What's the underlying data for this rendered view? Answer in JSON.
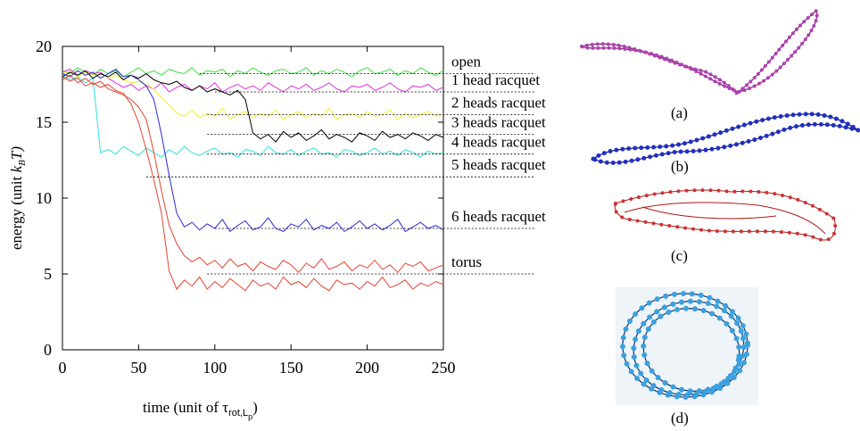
{
  "chart_data": {
    "type": "line",
    "ylabel": [
      "energy (unit ",
      "k",
      "B",
      "T)"
    ],
    "xlabel": [
      "time (unit of ",
      "τ",
      "rot,L",
      "p",
      ")"
    ],
    "xlim": [
      0,
      250
    ],
    "ylim": [
      0,
      20
    ],
    "xticks": [
      0,
      50,
      100,
      150,
      200,
      250
    ],
    "yticks": [
      0,
      5,
      10,
      15,
      20
    ],
    "x": [
      0,
      5,
      10,
      15,
      20,
      25,
      30,
      35,
      40,
      45,
      50,
      55,
      60,
      65,
      70,
      75,
      80,
      85,
      90,
      95,
      100,
      105,
      110,
      115,
      120,
      125,
      130,
      135,
      140,
      145,
      150,
      155,
      160,
      165,
      170,
      175,
      180,
      185,
      190,
      195,
      200,
      205,
      210,
      215,
      220,
      225,
      230,
      235,
      240,
      245,
      250
    ],
    "series": [
      {
        "color": "#3ee03e",
        "values": [
          18.4,
          18.2,
          18.6,
          18.3,
          18.1,
          18.5,
          18.2,
          18.4,
          18.0,
          18.3,
          18.6,
          18.2,
          18.4,
          18.1,
          18.5,
          18.3,
          18.2,
          18.6,
          18.1,
          18.4,
          18.3,
          18.5,
          18.0,
          18.4,
          18.2,
          18.6,
          18.3,
          18.1,
          18.4,
          18.5,
          18.2,
          18.3,
          18.6,
          18.1,
          18.4,
          18.2,
          18.5,
          18.3,
          18.0,
          18.4,
          18.6,
          18.2,
          18.3,
          18.5,
          18.1,
          18.4,
          18.2,
          18.6,
          18.3,
          18.1,
          18.4
        ]
      },
      {
        "color": "#e030e0",
        "values": [
          18.3,
          18.5,
          18.1,
          18.4,
          18.2,
          18.3,
          17.9,
          17.6,
          17.3,
          17.5,
          17.1,
          17.4,
          17.2,
          17.6,
          17.0,
          17.3,
          17.5,
          17.1,
          17.4,
          17.2,
          17.6,
          17.0,
          17.3,
          17.5,
          17.2,
          17.4,
          17.1,
          17.6,
          17.3,
          17.0,
          17.4,
          17.2,
          17.5,
          17.1,
          17.3,
          17.6,
          17.2,
          17.0,
          17.4,
          17.3,
          17.5,
          17.1,
          17.3,
          17.6,
          17.2,
          17.0,
          17.4,
          17.3,
          17.5,
          17.1,
          17.3
        ]
      },
      {
        "color": "#30e0e0",
        "values": [
          18.1,
          17.8,
          18.0,
          17.6,
          17.9,
          13.0,
          13.2,
          12.9,
          13.4,
          13.1,
          12.8,
          13.3,
          13.0,
          12.7,
          13.2,
          12.9,
          13.4,
          13.0,
          12.8,
          13.1,
          13.3,
          12.9,
          13.0,
          12.7,
          13.2,
          13.1,
          12.8,
          13.4,
          13.0,
          12.9,
          13.2,
          12.8,
          13.1,
          13.3,
          12.9,
          13.0,
          12.7,
          13.2,
          13.1,
          12.8,
          13.0,
          13.3,
          12.9,
          13.1,
          12.8,
          13.2,
          13.0,
          12.7,
          13.1,
          12.9,
          13.0
        ]
      },
      {
        "color": "#f0f020",
        "values": [
          18.2,
          18.4,
          18.0,
          18.3,
          18.1,
          18.2,
          17.9,
          18.1,
          17.8,
          17.6,
          17.7,
          17.5,
          17.2,
          16.6,
          16.1,
          15.6,
          15.4,
          15.8,
          15.3,
          15.6,
          15.4,
          15.9,
          15.2,
          15.5,
          15.7,
          15.3,
          15.6,
          15.4,
          15.8,
          15.2,
          15.5,
          15.7,
          15.3,
          15.6,
          15.4,
          15.9,
          15.2,
          15.5,
          15.6,
          15.3,
          15.7,
          15.4,
          15.5,
          15.8,
          15.2,
          15.6,
          15.3,
          15.5,
          15.7,
          15.4,
          15.5
        ]
      },
      {
        "color": "#000000",
        "values": [
          18.0,
          18.3,
          18.1,
          18.4,
          17.9,
          18.2,
          18.0,
          18.3,
          17.8,
          18.1,
          17.9,
          18.2,
          17.8,
          17.6,
          17.5,
          17.7,
          17.3,
          17.1,
          17.4,
          17.0,
          17.2,
          17.0,
          16.8,
          17.1,
          16.5,
          14.3,
          13.9,
          14.2,
          13.7,
          14.4,
          14.0,
          14.3,
          13.8,
          14.1,
          14.5,
          13.9,
          14.2,
          14.0,
          13.7,
          14.3,
          14.1,
          13.8,
          14.4,
          14.0,
          14.2,
          13.9,
          14.3,
          14.1,
          13.8,
          14.2,
          14.0
        ]
      },
      {
        "color": "#2a2ad8",
        "values": [
          18.2,
          18.0,
          18.4,
          18.1,
          18.3,
          17.9,
          18.2,
          18.5,
          18.0,
          18.1,
          17.8,
          17.4,
          16.5,
          14.2,
          11.5,
          9.0,
          8.1,
          8.4,
          7.9,
          8.3,
          8.0,
          8.6,
          7.8,
          8.2,
          8.5,
          7.9,
          8.1,
          8.7,
          8.0,
          7.8,
          8.3,
          8.1,
          8.6,
          7.9,
          8.2,
          8.0,
          8.4,
          7.8,
          8.1,
          8.5,
          8.0,
          8.3,
          7.9,
          8.2,
          8.6,
          7.8,
          8.1,
          8.4,
          8.0,
          8.2,
          7.9
        ]
      },
      {
        "color": "#e8432f",
        "values": [
          17.8,
          18.1,
          17.6,
          17.9,
          17.5,
          17.7,
          17.2,
          17.0,
          16.8,
          16.5,
          16.0,
          15.2,
          13.0,
          10.5,
          8.2,
          7.0,
          6.2,
          5.8,
          6.1,
          5.6,
          5.9,
          5.4,
          6.0,
          5.5,
          5.7,
          5.2,
          5.8,
          5.5,
          5.3,
          5.9,
          5.6,
          5.1,
          5.7,
          5.4,
          6.0,
          5.3,
          5.5,
          5.8,
          5.2,
          5.6,
          5.4,
          5.9,
          5.3,
          5.6,
          5.1,
          5.7,
          5.5,
          5.8,
          5.2,
          5.4,
          5.6
        ]
      },
      {
        "color": "#e8432f",
        "values": [
          18.0,
          17.7,
          17.9,
          17.4,
          17.6,
          17.3,
          17.5,
          17.1,
          16.9,
          16.2,
          15.0,
          13.2,
          11.2,
          9.0,
          5.2,
          4.0,
          4.6,
          4.2,
          4.8,
          4.0,
          4.5,
          4.1,
          4.7,
          4.3,
          3.9,
          4.6,
          4.2,
          4.4,
          4.0,
          4.8,
          4.3,
          4.5,
          4.1,
          4.7,
          4.2,
          3.9,
          4.6,
          4.3,
          4.4,
          4.0,
          4.5,
          4.2,
          4.8,
          4.1,
          4.3,
          4.6,
          4.0,
          4.4,
          4.2,
          4.5,
          4.3
        ]
      }
    ],
    "annotations": [
      {
        "label": "open",
        "y": 18.2,
        "x_start": 90
      },
      {
        "label": "1 head racquet",
        "y": 17.0,
        "x_start": 100
      },
      {
        "label": "2 heads racquet",
        "y": 15.5,
        "x_start": 95
      },
      {
        "label": "3 heads racquet",
        "y": 14.2,
        "x_start": 95
      },
      {
        "label": "4 heads racquet",
        "y": 12.9,
        "x_start": 95
      },
      {
        "label": "5 heads racquet",
        "y": 11.4,
        "x_start": 55
      },
      {
        "label": "6 heads racquet",
        "y": 8.0,
        "x_start": 100
      },
      {
        "label": "torus",
        "y": 5.0,
        "x_start": 95
      }
    ]
  },
  "panels": [
    "(a)",
    "(b)",
    "(c)",
    "(d)"
  ]
}
